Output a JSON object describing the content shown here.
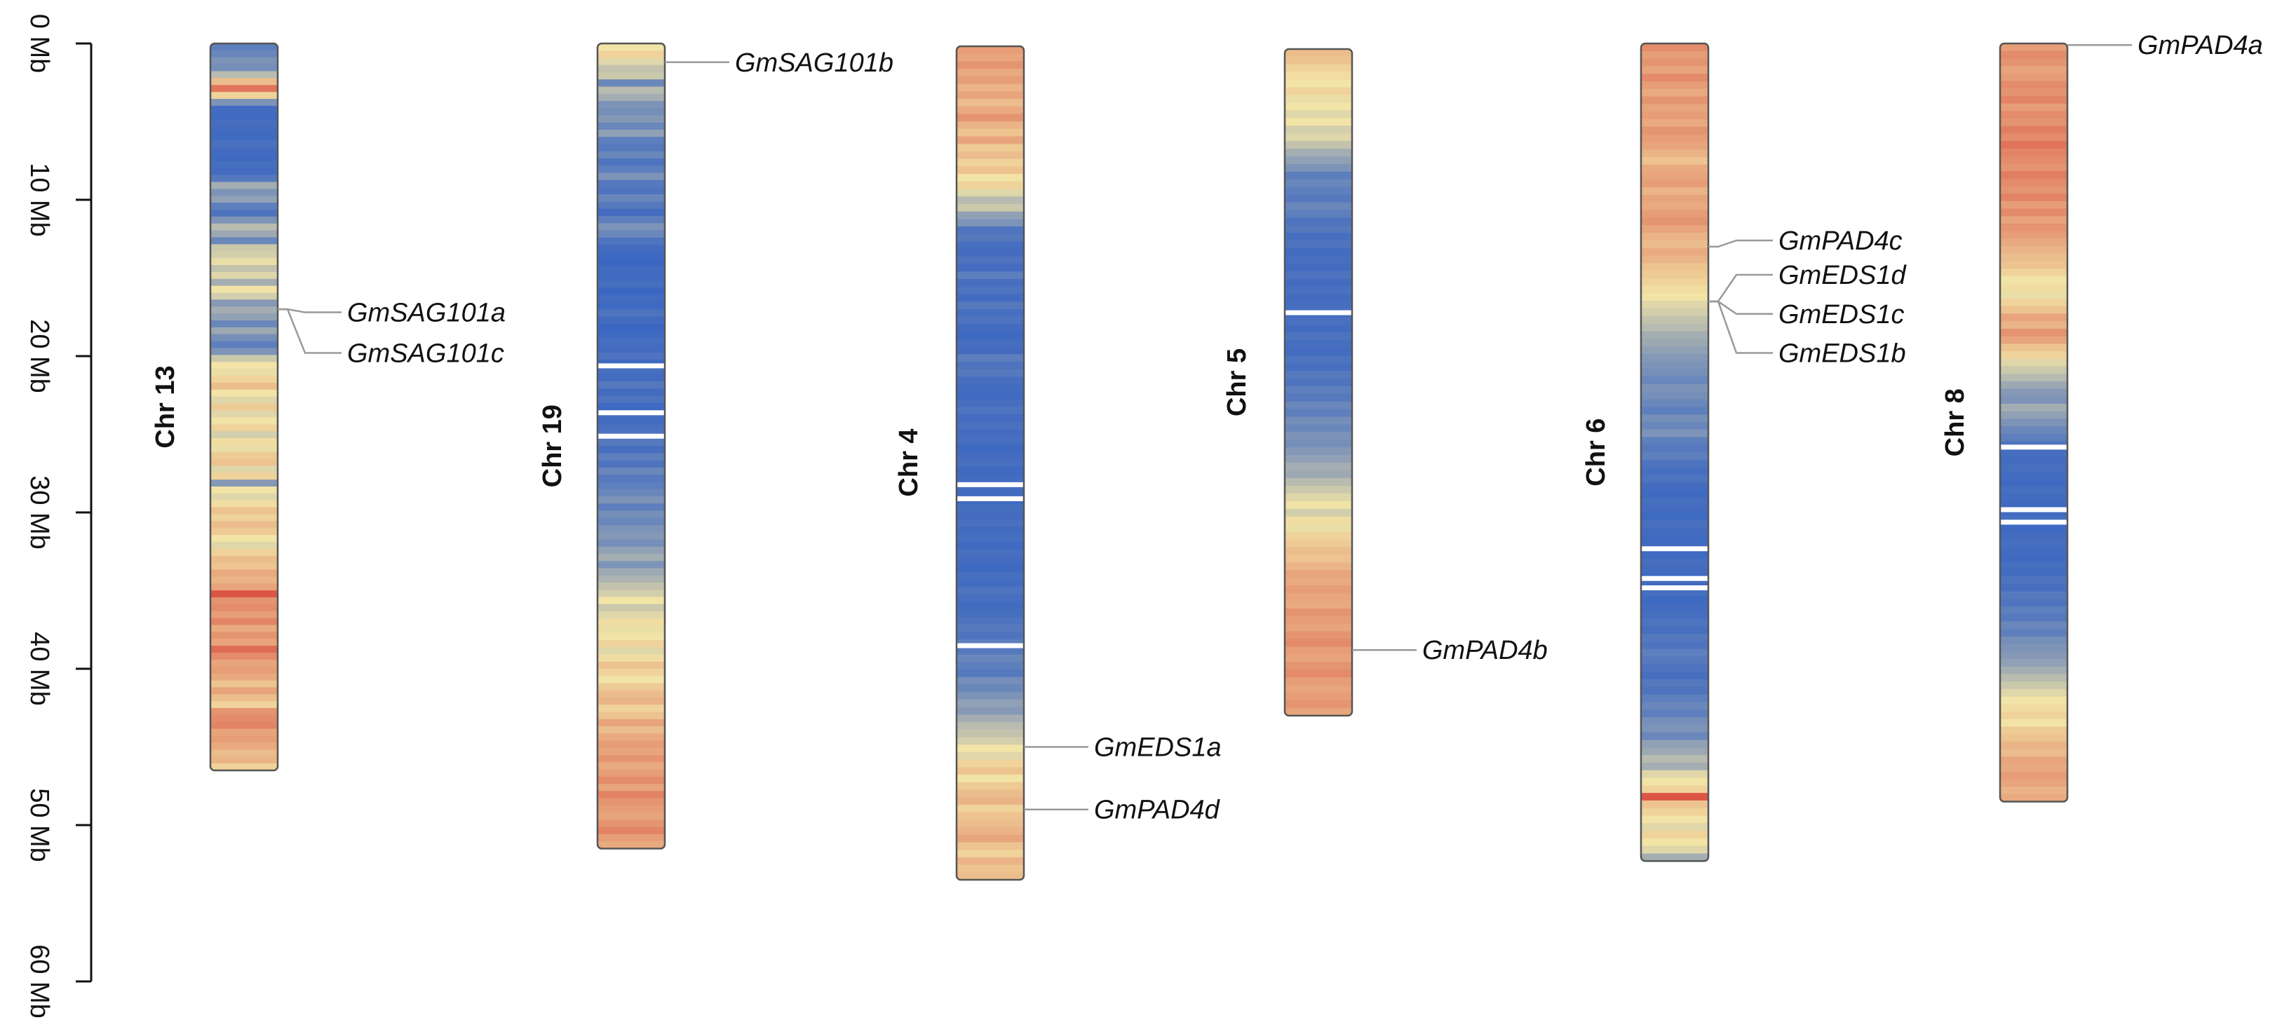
{
  "axis": {
    "unit": "Mb",
    "ticks": [
      {
        "value": 0,
        "label": "0 Mb"
      },
      {
        "value": 10,
        "label": "10 Mb"
      },
      {
        "value": 20,
        "label": "20 Mb"
      },
      {
        "value": 30,
        "label": "30 Mb"
      },
      {
        "value": 40,
        "label": "40 Mb"
      },
      {
        "value": 50,
        "label": "50 Mb"
      },
      {
        "value": 60,
        "label": "60 Mb"
      }
    ],
    "range": [
      0,
      60
    ]
  },
  "colors": {
    "low_density": "#2f5fc4",
    "mid_density": "#f2e3a6",
    "high_density": "#d8453a",
    "gap": "#ffffff",
    "outline": "#555555",
    "leader_line": "#999999"
  },
  "chromosomes": [
    {
      "label": "Chr 13",
      "start_mb": 0,
      "length_mb": 46.5,
      "density": [
        0.12,
        0.15,
        0.2,
        0.18,
        0.35,
        0.62,
        0.85,
        0.55,
        0.2,
        0.05,
        0.04,
        0.06,
        0.05,
        0.04,
        0.07,
        0.05,
        0.04,
        0.06,
        0.05,
        0.1,
        0.3,
        0.2,
        0.25,
        0.12,
        0.08,
        0.2,
        0.35,
        0.28,
        0.15,
        0.4,
        0.42,
        0.48,
        0.38,
        0.45,
        0.3,
        0.5,
        0.42,
        0.22,
        0.3,
        0.25,
        0.15,
        0.28,
        0.18,
        0.12,
        0.2,
        0.4,
        0.5,
        0.48,
        0.55,
        0.62,
        0.5,
        0.45,
        0.58,
        0.45,
        0.5,
        0.55,
        0.42,
        0.52,
        0.48,
        0.58,
        0.6,
        0.45,
        0.55,
        0.22,
        0.5,
        0.45,
        0.52,
        0.6,
        0.55,
        0.62,
        0.58,
        0.5,
        0.45,
        0.55,
        0.62,
        0.6,
        0.68,
        0.65,
        0.7,
        0.95,
        0.75,
        0.78,
        0.72,
        0.8,
        0.68,
        0.75,
        0.7,
        0.88,
        0.78,
        0.7,
        0.72,
        0.68,
        0.6,
        0.7,
        0.62,
        0.55,
        0.75,
        0.78,
        0.8,
        0.7,
        0.72,
        0.68,
        0.62,
        0.65,
        0.55
      ]
    },
    {
      "label": "Chr 19",
      "start_mb": 0,
      "length_mb": 51.5,
      "gaps_mb": [
        20.6,
        23.6,
        25.1
      ],
      "density": [
        0.5,
        0.55,
        0.45,
        0.38,
        0.4,
        0.15,
        0.35,
        0.3,
        0.2,
        0.18,
        0.22,
        0.15,
        0.25,
        0.12,
        0.1,
        0.15,
        0.08,
        0.12,
        0.2,
        0.1,
        0.08,
        0.15,
        0.1,
        0.05,
        0.12,
        0.2,
        0.15,
        0.08,
        0.05,
        0.04,
        0.03,
        0.05,
        0.04,
        0.06,
        0.03,
        0.05,
        0.04,
        0.08,
        0.05,
        0.03,
        0.04,
        0.06,
        0.05,
        0.08,
        0.04,
        0.06,
        0.05,
        0.1,
        0.05,
        0.08,
        0.04,
        0.06,
        0.05,
        0.07,
        0.08,
        0.1,
        0.06,
        0.12,
        0.08,
        0.15,
        0.1,
        0.12,
        0.15,
        0.2,
        0.12,
        0.18,
        0.15,
        0.2,
        0.22,
        0.18,
        0.25,
        0.3,
        0.2,
        0.28,
        0.32,
        0.38,
        0.42,
        0.5,
        0.4,
        0.45,
        0.52,
        0.48,
        0.5,
        0.55,
        0.45,
        0.52,
        0.6,
        0.55,
        0.5,
        0.58,
        0.62,
        0.65,
        0.55,
        0.6,
        0.7,
        0.62,
        0.68,
        0.72,
        0.7,
        0.75,
        0.68,
        0.72,
        0.78,
        0.7,
        0.8,
        0.75,
        0.72,
        0.7,
        0.75,
        0.8,
        0.72,
        0.68
      ]
    },
    {
      "label": "Chr 4",
      "start_mb": 0,
      "length_mb": 53.5,
      "gaps_mb": [
        28.2,
        29.1,
        38.5
      ],
      "density": [
        0.72,
        0.7,
        0.75,
        0.68,
        0.72,
        0.65,
        0.7,
        0.62,
        0.68,
        0.75,
        0.65,
        0.6,
        0.7,
        0.58,
        0.62,
        0.55,
        0.6,
        0.5,
        0.55,
        0.45,
        0.35,
        0.4,
        0.25,
        0.2,
        0.08,
        0.1,
        0.06,
        0.05,
        0.08,
        0.05,
        0.12,
        0.06,
        0.08,
        0.05,
        0.1,
        0.06,
        0.08,
        0.05,
        0.04,
        0.06,
        0.05,
        0.12,
        0.08,
        0.1,
        0.06,
        0.05,
        0.04,
        0.06,
        0.08,
        0.05,
        0.07,
        0.05,
        0.06,
        0.04,
        0.05,
        0.06,
        0.04,
        0.05,
        0.06,
        0.05,
        0.04,
        0.06,
        0.05,
        0.07,
        0.05,
        0.06,
        0.04,
        0.06,
        0.05,
        0.04,
        0.06,
        0.05,
        0.08,
        0.06,
        0.05,
        0.06,
        0.08,
        0.1,
        0.08,
        0.12,
        0.1,
        0.15,
        0.12,
        0.1,
        0.18,
        0.15,
        0.2,
        0.25,
        0.22,
        0.3,
        0.35,
        0.38,
        0.42,
        0.5,
        0.45,
        0.55,
        0.6,
        0.5,
        0.58,
        0.62,
        0.65,
        0.55,
        0.6,
        0.62,
        0.65,
        0.7,
        0.6,
        0.55,
        0.65,
        0.6,
        0.62
      ]
    },
    {
      "label": "Chr 5",
      "start_mb": 0,
      "length_mb": 43,
      "gaps_mb": [
        17.2
      ],
      "density": [
        0.62,
        0.6,
        0.55,
        0.52,
        0.5,
        0.55,
        0.48,
        0.5,
        0.45,
        0.5,
        0.42,
        0.45,
        0.38,
        0.3,
        0.25,
        0.2,
        0.12,
        0.15,
        0.12,
        0.1,
        0.15,
        0.12,
        0.08,
        0.1,
        0.06,
        0.08,
        0.05,
        0.06,
        0.05,
        0.08,
        0.05,
        0.07,
        0.05,
        0.06,
        0.05,
        0.07,
        0.05,
        0.08,
        0.06,
        0.05,
        0.08,
        0.06,
        0.1,
        0.08,
        0.12,
        0.1,
        0.15,
        0.12,
        0.18,
        0.15,
        0.2,
        0.18,
        0.22,
        0.25,
        0.3,
        0.28,
        0.35,
        0.4,
        0.45,
        0.5,
        0.42,
        0.52,
        0.48,
        0.55,
        0.58,
        0.62,
        0.6,
        0.65,
        0.7,
        0.68,
        0.72,
        0.7,
        0.68,
        0.75,
        0.72,
        0.7,
        0.75,
        0.78,
        0.72,
        0.7,
        0.75,
        0.78,
        0.72,
        0.7,
        0.72,
        0.75,
        0.7
      ]
    },
    {
      "label": "Chr 6",
      "start_mb": 0,
      "length_mb": 52.3,
      "gaps_mb": [
        32.3,
        34.2,
        34.8
      ],
      "density": [
        0.78,
        0.72,
        0.75,
        0.7,
        0.78,
        0.72,
        0.68,
        0.75,
        0.7,
        0.72,
        0.68,
        0.75,
        0.72,
        0.7,
        0.65,
        0.6,
        0.68,
        0.7,
        0.72,
        0.65,
        0.7,
        0.68,
        0.72,
        0.75,
        0.7,
        0.65,
        0.62,
        0.68,
        0.65,
        0.6,
        0.58,
        0.55,
        0.52,
        0.5,
        0.45,
        0.42,
        0.38,
        0.35,
        0.3,
        0.28,
        0.25,
        0.22,
        0.2,
        0.18,
        0.15,
        0.2,
        0.18,
        0.15,
        0.12,
        0.18,
        0.15,
        0.2,
        0.12,
        0.1,
        0.12,
        0.08,
        0.06,
        0.08,
        0.05,
        0.04,
        0.06,
        0.05,
        0.04,
        0.06,
        0.05,
        0.04,
        0.05,
        0.04,
        0.06,
        0.05,
        0.04,
        0.05,
        0.06,
        0.04,
        0.05,
        0.06,
        0.08,
        0.06,
        0.1,
        0.08,
        0.12,
        0.1,
        0.08,
        0.06,
        0.1,
        0.08,
        0.12,
        0.15,
        0.12,
        0.18,
        0.2,
        0.15,
        0.25,
        0.28,
        0.35,
        0.3,
        0.45,
        0.5,
        0.55,
        0.95,
        0.6,
        0.55,
        0.5,
        0.45,
        0.55,
        0.5,
        0.45,
        0.3
      ]
    },
    {
      "label": "Chr 8",
      "start_mb": 0,
      "length_mb": 48.5,
      "gaps_mb": [
        25.8,
        29.8,
        30.6
      ],
      "density": [
        0.72,
        0.78,
        0.75,
        0.7,
        0.72,
        0.78,
        0.75,
        0.8,
        0.72,
        0.78,
        0.75,
        0.82,
        0.78,
        0.85,
        0.8,
        0.78,
        0.75,
        0.82,
        0.78,
        0.75,
        0.8,
        0.72,
        0.78,
        0.7,
        0.75,
        0.72,
        0.68,
        0.65,
        0.62,
        0.6,
        0.55,
        0.5,
        0.52,
        0.48,
        0.55,
        0.6,
        0.7,
        0.65,
        0.75,
        0.7,
        0.6,
        0.55,
        0.45,
        0.4,
        0.35,
        0.28,
        0.22,
        0.2,
        0.3,
        0.25,
        0.2,
        0.15,
        0.12,
        0.08,
        0.06,
        0.05,
        0.06,
        0.05,
        0.04,
        0.06,
        0.05,
        0.04,
        0.05,
        0.06,
        0.04,
        0.05,
        0.06,
        0.05,
        0.04,
        0.06,
        0.05,
        0.08,
        0.06,
        0.1,
        0.08,
        0.12,
        0.1,
        0.15,
        0.12,
        0.18,
        0.2,
        0.22,
        0.25,
        0.3,
        0.35,
        0.4,
        0.45,
        0.5,
        0.52,
        0.55,
        0.5,
        0.58,
        0.6,
        0.65,
        0.62,
        0.7,
        0.68,
        0.72,
        0.7,
        0.65,
        0.68
      ]
    }
  ],
  "genes": [
    {
      "name": "GmSAG101a",
      "chr": 0,
      "pos_mb": 17.0,
      "label_mb": 17.2
    },
    {
      "name": "GmSAG101c",
      "chr": 0,
      "pos_mb": 17.0,
      "label_mb": 19.8
    },
    {
      "name": "GmSAG101b",
      "chr": 1,
      "pos_mb": 1.2,
      "label_mb": 1.2
    },
    {
      "name": "GmEDS1a",
      "chr": 2,
      "pos_mb": 45.0,
      "label_mb": 45.0
    },
    {
      "name": "GmPAD4d",
      "chr": 2,
      "pos_mb": 49.0,
      "label_mb": 49.0
    },
    {
      "name": "GmPAD4b",
      "chr": 3,
      "pos_mb": 38.8,
      "label_mb": 38.8
    },
    {
      "name": "GmPAD4c",
      "chr": 4,
      "pos_mb": 13.0,
      "label_mb": 12.6
    },
    {
      "name": "GmEDS1d",
      "chr": 4,
      "pos_mb": 16.5,
      "label_mb": 14.8
    },
    {
      "name": "GmEDS1c",
      "chr": 4,
      "pos_mb": 16.5,
      "label_mb": 17.3
    },
    {
      "name": "GmEDS1b",
      "chr": 4,
      "pos_mb": 16.5,
      "label_mb": 19.8
    },
    {
      "name": "GmPAD4a",
      "chr": 5,
      "pos_mb": 0.1,
      "label_mb": 0.1
    }
  ]
}
